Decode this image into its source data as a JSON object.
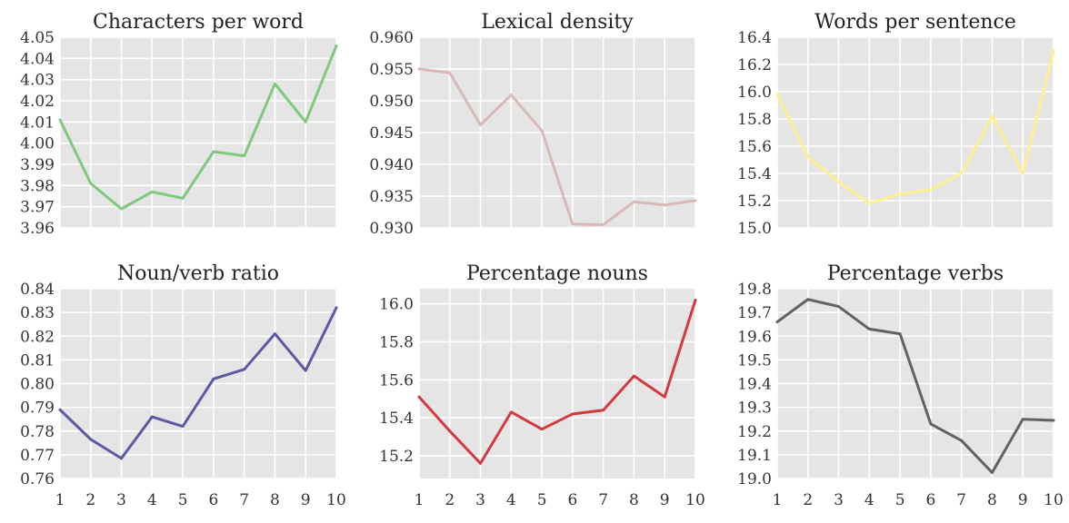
{
  "chart_data": [
    {
      "type": "line",
      "title": "Characters per word",
      "color": "#7fc97f",
      "x": [
        1,
        2,
        3,
        4,
        5,
        6,
        7,
        8,
        9,
        10
      ],
      "values": [
        4.011,
        3.981,
        3.969,
        3.977,
        3.974,
        3.996,
        3.994,
        4.028,
        4.01,
        4.046
      ],
      "ylim": [
        3.96,
        4.05
      ],
      "yticks": [
        "3.96",
        "3.97",
        "3.98",
        "3.99",
        "4.00",
        "4.01",
        "4.02",
        "4.03",
        "4.04",
        "4.05"
      ],
      "xticks": [],
      "grid": true
    },
    {
      "type": "line",
      "title": "Lexical density",
      "color": "#dbb8b8",
      "x": [
        1,
        2,
        3,
        4,
        5,
        6,
        7,
        8,
        9,
        10
      ],
      "values": [
        0.955,
        0.9544,
        0.9462,
        0.9509,
        0.9453,
        0.9306,
        0.9305,
        0.9341,
        0.9336,
        0.9343
      ],
      "ylim": [
        0.93,
        0.96
      ],
      "yticks": [
        "0.930",
        "0.935",
        "0.940",
        "0.945",
        "0.950",
        "0.955",
        "0.960"
      ],
      "xticks": [],
      "grid": true
    },
    {
      "type": "line",
      "title": "Words per sentence",
      "color": "#fff08f",
      "x": [
        1,
        2,
        3,
        4,
        5,
        6,
        7,
        8,
        9,
        10
      ],
      "values": [
        15.98,
        15.52,
        15.34,
        15.18,
        15.25,
        15.28,
        15.4,
        15.82,
        15.4,
        16.3
      ],
      "ylim": [
        15.0,
        16.4
      ],
      "yticks": [
        "15.0",
        "15.2",
        "15.4",
        "15.6",
        "15.8",
        "16.0",
        "16.2",
        "16.4"
      ],
      "xticks": [],
      "grid": true
    },
    {
      "type": "line",
      "title": "Noun/verb ratio",
      "color": "#5c59a5",
      "x": [
        1,
        2,
        3,
        4,
        5,
        6,
        7,
        8,
        9,
        10
      ],
      "values": [
        0.789,
        0.7765,
        0.7685,
        0.786,
        0.782,
        0.802,
        0.806,
        0.821,
        0.8055,
        0.832
      ],
      "ylim": [
        0.76,
        0.84
      ],
      "yticks": [
        "0.76",
        "0.77",
        "0.78",
        "0.79",
        "0.80",
        "0.81",
        "0.82",
        "0.83",
        "0.84"
      ],
      "xticks": [
        "1",
        "2",
        "3",
        "4",
        "5",
        "6",
        "7",
        "8",
        "9",
        "10"
      ],
      "grid": true
    },
    {
      "type": "line",
      "title": "Percentage nouns",
      "color": "#d43843",
      "x": [
        1,
        2,
        3,
        4,
        5,
        6,
        7,
        8,
        9,
        10
      ],
      "values": [
        15.51,
        15.33,
        15.16,
        15.43,
        15.34,
        15.42,
        15.44,
        15.62,
        15.51,
        16.02
      ],
      "ylim": [
        15.08,
        16.08
      ],
      "yticks": [
        "15.2",
        "15.4",
        "15.6",
        "15.8",
        "16.0"
      ],
      "xticks": [
        "1",
        "2",
        "3",
        "4",
        "5",
        "6",
        "7",
        "8",
        "9",
        "10"
      ],
      "grid": true
    },
    {
      "type": "line",
      "title": "Percentage verbs",
      "color": "#626262",
      "x": [
        1,
        2,
        3,
        4,
        5,
        6,
        7,
        8,
        9,
        10
      ],
      "values": [
        19.66,
        19.755,
        19.725,
        19.63,
        19.61,
        19.23,
        19.16,
        19.025,
        19.25,
        19.245
      ],
      "ylim": [
        19.0,
        19.8
      ],
      "yticks": [
        "19.0",
        "19.1",
        "19.2",
        "19.3",
        "19.4",
        "19.5",
        "19.6",
        "19.7",
        "19.8"
      ],
      "xticks": [
        "1",
        "2",
        "3",
        "4",
        "5",
        "6",
        "7",
        "8",
        "9",
        "10"
      ],
      "grid": true
    }
  ]
}
